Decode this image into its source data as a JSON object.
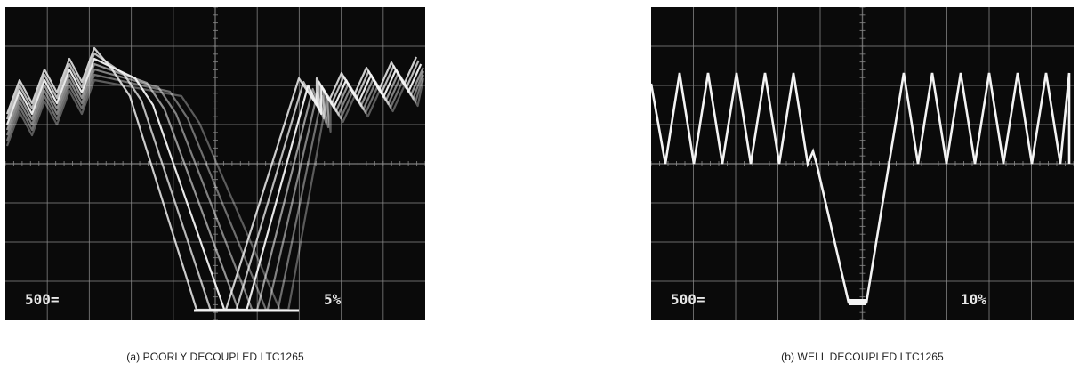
{
  "panels": [
    {
      "id": "a",
      "caption": "(a) POORLY DECOUPLED LTC1265",
      "scope_readout_left": "500=",
      "scope_readout_right": "5%"
    },
    {
      "id": "b",
      "caption": "(b) WELL DECOUPLED LTC1265",
      "scope_readout_left": "500=",
      "scope_readout_right": "10%"
    }
  ],
  "colors": {
    "screen": "#0a0a0a",
    "grid": "#8a8a8a",
    "trace": "#f4f4f4"
  }
}
